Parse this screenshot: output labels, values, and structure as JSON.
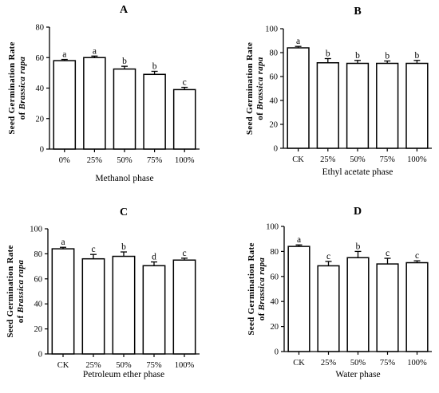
{
  "figure": {
    "background": "#ffffff",
    "ink": "#000000",
    "bar_fill": "#ffffff"
  },
  "chart_data": [
    {
      "type": "bar",
      "panel": "A",
      "categories": [
        "0%",
        "25%",
        "50%",
        "75%",
        "100%"
      ],
      "values": [
        58,
        60,
        52.5,
        49,
        39
      ],
      "errors": [
        0.8,
        1.0,
        1.8,
        2.0,
        1.5
      ],
      "significance": [
        "a",
        "a",
        "b",
        "b",
        "c"
      ],
      "xlabel": "Methanol phase",
      "ylabel_line1": "Seed Germination Rate",
      "ylabel_line2_prefix": "of",
      "ylabel_line2_italic": "Brassica rapa",
      "ylim": [
        0,
        80
      ],
      "yticks": [
        0,
        20,
        40,
        60,
        80
      ],
      "grid": false
    },
    {
      "type": "bar",
      "panel": "B",
      "categories": [
        "CK",
        "25%",
        "50%",
        "75%",
        "100%"
      ],
      "values": [
        84,
        71.5,
        71,
        71,
        71
      ],
      "errors": [
        1.2,
        3.5,
        2.5,
        2.0,
        2.5
      ],
      "significance": [
        "a",
        "b",
        "b",
        "b",
        "b"
      ],
      "xlabel": "Ethyl acetate phase",
      "ylabel_line1": "Seed Germination Rate",
      "ylabel_line2_prefix": "of",
      "ylabel_line2_italic": "Brassica rapa",
      "ylim": [
        0,
        100
      ],
      "yticks": [
        0,
        20,
        40,
        60,
        80,
        100
      ],
      "grid": false
    },
    {
      "type": "bar",
      "panel": "C",
      "categories": [
        "CK",
        "25%",
        "50%",
        "75%",
        "100%"
      ],
      "values": [
        84,
        76,
        78,
        70.5,
        75
      ],
      "errors": [
        1.2,
        3.5,
        3.5,
        3.0,
        1.5
      ],
      "significance": [
        "a",
        "c",
        "b",
        "d",
        "c"
      ],
      "xlabel": "Petroleum ether phase",
      "ylabel_line1": "Seed Germination Rate",
      "ylabel_line2_prefix": "of",
      "ylabel_line2_italic": "Brassica rapa",
      "ylim": [
        0,
        100
      ],
      "yticks": [
        0,
        20,
        40,
        60,
        80,
        100
      ],
      "grid": false
    },
    {
      "type": "bar",
      "panel": "D",
      "categories": [
        "CK",
        "25%",
        "50%",
        "75%",
        "100%"
      ],
      "values": [
        84,
        68.5,
        75,
        70,
        71
      ],
      "errors": [
        1.2,
        3.5,
        5.0,
        4.5,
        1.5
      ],
      "significance": [
        "a",
        "c",
        "b",
        "c",
        "c"
      ],
      "xlabel": "Water phase",
      "ylabel_line1": "Seed Germination Rate",
      "ylabel_line2_prefix": "of",
      "ylabel_line2_italic": "Brassica rapa",
      "ylim": [
        0,
        100
      ],
      "yticks": [
        0,
        20,
        40,
        60,
        80,
        100
      ],
      "grid": false
    }
  ]
}
